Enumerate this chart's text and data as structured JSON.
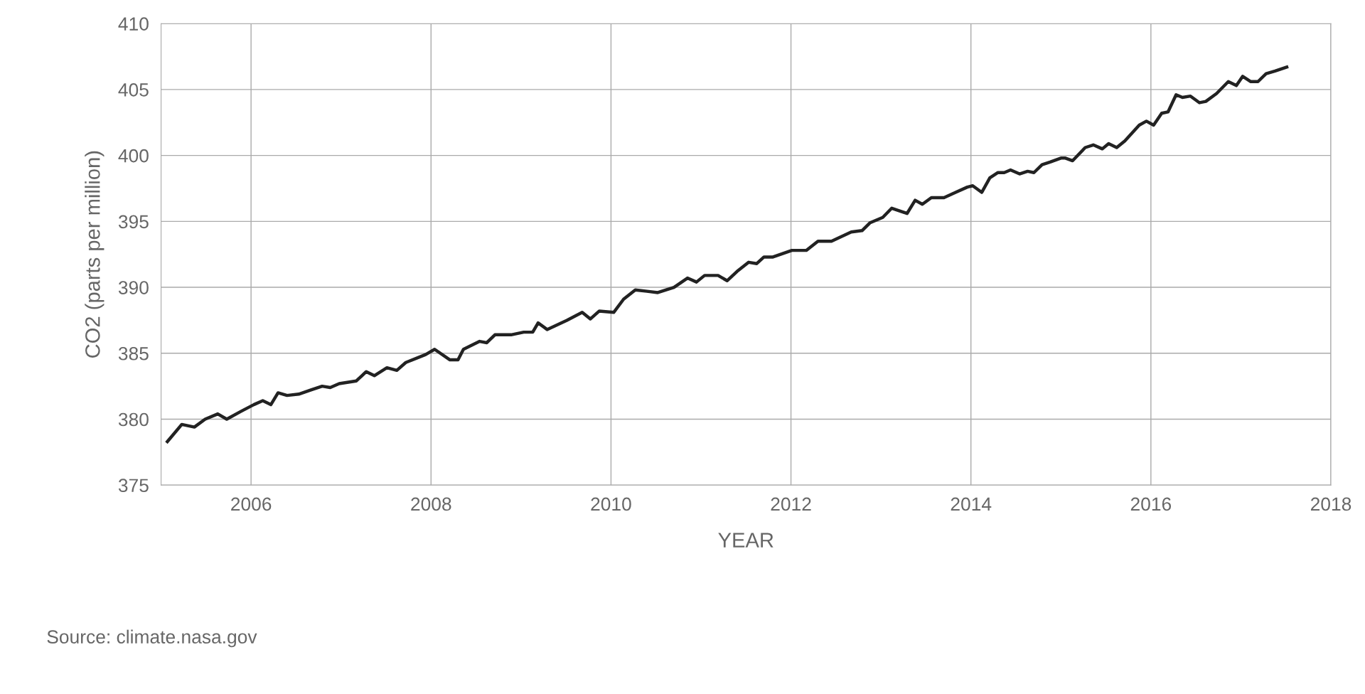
{
  "chart_data": {
    "type": "line",
    "xlabel": "YEAR",
    "ylabel": "CO2 (parts per million)",
    "annotations": [
      "Source: climate.nasa.gov"
    ],
    "xlim": [
      2005,
      2018
    ],
    "xticks": [
      2006,
      2008,
      2010,
      2012,
      2014,
      2016,
      2018
    ],
    "ylim": [
      375,
      410
    ],
    "yticks": [
      375,
      380,
      385,
      390,
      395,
      400,
      405,
      410
    ],
    "grid": true,
    "legend": false,
    "marker": "none",
    "line_style": "solid",
    "series": [
      {
        "color": "#222222",
        "x": [
          2005.07,
          2005.23,
          2005.37,
          2005.49,
          2005.63,
          2005.73,
          2005.89,
          2006.03,
          2006.13,
          2006.22,
          2006.3,
          2006.4,
          2006.53,
          2006.66,
          2006.79,
          2006.88,
          2006.98,
          2007.17,
          2007.28,
          2007.37,
          2007.51,
          2007.62,
          2007.72,
          2007.94,
          2008.04,
          2008.21,
          2008.3,
          2008.36,
          2008.54,
          2008.62,
          2008.71,
          2008.89,
          2009.03,
          2009.13,
          2009.19,
          2009.29,
          2009.51,
          2009.68,
          2009.77,
          2009.87,
          2010.03,
          2010.14,
          2010.27,
          2010.4,
          2010.52,
          2010.7,
          2010.85,
          2010.95,
          2011.04,
          2011.19,
          2011.29,
          2011.4,
          2011.53,
          2011.62,
          2011.7,
          2011.8,
          2012.01,
          2012.17,
          2012.3,
          2012.45,
          2012.67,
          2012.79,
          2012.88,
          2013.02,
          2013.12,
          2013.29,
          2013.38,
          2013.46,
          2013.56,
          2013.7,
          2013.83,
          2013.96,
          2014.02,
          2014.12,
          2014.21,
          2014.3,
          2014.37,
          2014.44,
          2014.54,
          2014.63,
          2014.7,
          2014.79,
          2014.88,
          2015.0,
          2015.05,
          2015.13,
          2015.27,
          2015.36,
          2015.46,
          2015.53,
          2015.62,
          2015.71,
          2015.87,
          2015.95,
          2016.03,
          2016.12,
          2016.19,
          2016.28,
          2016.35,
          2016.44,
          2016.54,
          2016.61,
          2016.73,
          2016.86,
          2016.95,
          2017.02,
          2017.11,
          2017.19,
          2017.28,
          2017.38,
          2017.51
        ],
        "values": [
          378.3,
          379.6,
          379.4,
          380.0,
          380.4,
          380.0,
          380.6,
          381.1,
          381.4,
          381.1,
          382.0,
          381.8,
          381.9,
          382.2,
          382.5,
          382.4,
          382.7,
          382.9,
          383.6,
          383.3,
          383.9,
          383.7,
          384.3,
          384.9,
          385.3,
          384.5,
          384.5,
          385.3,
          385.9,
          385.8,
          386.4,
          386.4,
          386.6,
          386.6,
          387.3,
          386.8,
          387.5,
          388.1,
          387.6,
          388.2,
          388.1,
          389.1,
          389.8,
          389.7,
          389.6,
          390.0,
          390.7,
          390.4,
          390.9,
          390.9,
          390.5,
          391.2,
          391.9,
          391.8,
          392.3,
          392.3,
          392.8,
          392.8,
          393.5,
          393.5,
          394.2,
          394.3,
          394.9,
          395.3,
          396.0,
          395.6,
          396.6,
          396.3,
          396.8,
          396.8,
          397.2,
          397.6,
          397.7,
          397.2,
          398.3,
          398.7,
          398.7,
          398.9,
          398.6,
          398.8,
          398.7,
          399.3,
          399.5,
          399.8,
          399.8,
          399.6,
          400.6,
          400.8,
          400.5,
          400.9,
          400.6,
          401.1,
          402.3,
          402.6,
          402.3,
          403.2,
          403.3,
          404.6,
          404.4,
          404.5,
          404.0,
          404.1,
          404.7,
          405.6,
          405.3,
          406.0,
          405.6,
          405.6,
          406.2,
          406.4,
          406.7
        ]
      }
    ]
  }
}
